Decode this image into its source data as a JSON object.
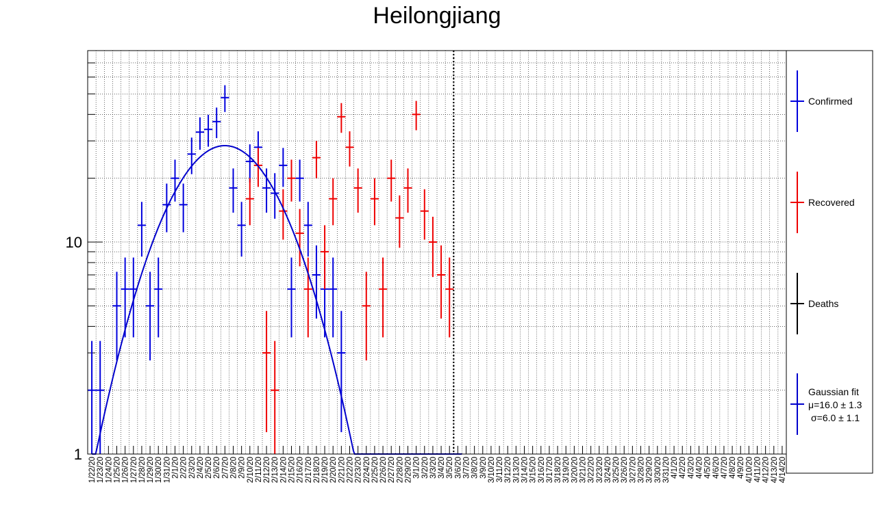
{
  "title": "Heilongjiang",
  "chart_data": {
    "type": "scatter",
    "title": "Heilongjiang",
    "y_scale": "log",
    "ylim": [
      1,
      80
    ],
    "y_tick_labels": [
      "1",
      "10"
    ],
    "grid": true,
    "legend_position": "right",
    "categories": [
      "1/22/20",
      "1/23/20",
      "1/24/20",
      "1/25/20",
      "1/26/20",
      "1/27/20",
      "1/28/20",
      "1/29/20",
      "1/30/20",
      "1/31/20",
      "2/1/20",
      "2/2/20",
      "2/3/20",
      "2/4/20",
      "2/5/20",
      "2/6/20",
      "2/7/20",
      "2/8/20",
      "2/9/20",
      "2/10/20",
      "2/11/20",
      "2/12/20",
      "2/13/20",
      "2/14/20",
      "2/15/20",
      "2/16/20",
      "2/17/20",
      "2/18/20",
      "2/19/20",
      "2/20/20",
      "2/21/20",
      "2/22/20",
      "2/23/20",
      "2/24/20",
      "2/25/20",
      "2/26/20",
      "2/27/20",
      "2/28/20",
      "2/29/20",
      "3/1/20",
      "3/2/20",
      "3/3/20",
      "3/4/20",
      "3/5/20",
      "3/6/20",
      "3/7/20",
      "3/8/20",
      "3/9/20",
      "3/10/20",
      "3/11/20",
      "3/12/20",
      "3/13/20",
      "3/14/20",
      "3/15/20",
      "3/16/20",
      "3/17/20",
      "3/18/20",
      "3/19/20",
      "3/20/20",
      "3/21/20",
      "3/22/20",
      "3/23/20",
      "3/24/20",
      "3/25/20",
      "3/26/20",
      "3/27/20",
      "3/28/20",
      "3/29/20",
      "3/30/20",
      "3/31/20",
      "4/1/20",
      "4/2/20",
      "4/3/20",
      "4/4/20",
      "4/5/20",
      "4/6/20",
      "4/7/20",
      "4/8/20",
      "4/9/20",
      "4/10/20",
      "4/11/20",
      "4/12/20",
      "4/13/20",
      "4/14/20"
    ],
    "vertical_marker_category": "3/6/20",
    "series": [
      {
        "name": "Confirmed",
        "color": "#0000dd",
        "values": [
          2,
          2,
          null,
          5,
          6,
          6,
          12,
          5,
          6,
          15,
          20,
          15,
          26,
          33,
          34,
          37,
          48,
          18,
          12,
          24,
          28,
          18,
          17,
          23,
          6,
          20,
          12,
          7,
          6,
          6,
          3
        ]
      },
      {
        "name": "Recovered",
        "color": "#ee0000",
        "values": [
          null,
          null,
          null,
          null,
          null,
          null,
          null,
          null,
          null,
          null,
          null,
          null,
          null,
          null,
          null,
          null,
          null,
          null,
          null,
          16,
          23,
          3,
          2,
          14,
          20,
          11,
          6,
          25,
          9,
          16,
          39,
          28,
          18,
          5,
          16,
          6,
          20,
          13,
          18,
          40,
          14,
          10,
          7,
          6
        ]
      },
      {
        "name": "Deaths",
        "color": "#000000",
        "values": []
      }
    ],
    "fit": {
      "name": "Gaussian fit",
      "color": "#0000cc",
      "amplitude": 28.5,
      "mu_label": "μ=16.0 ± 1.3",
      "sigma_label": "σ=6.0 ± 1.1",
      "mu": 16.0,
      "sigma": 6.0
    }
  }
}
